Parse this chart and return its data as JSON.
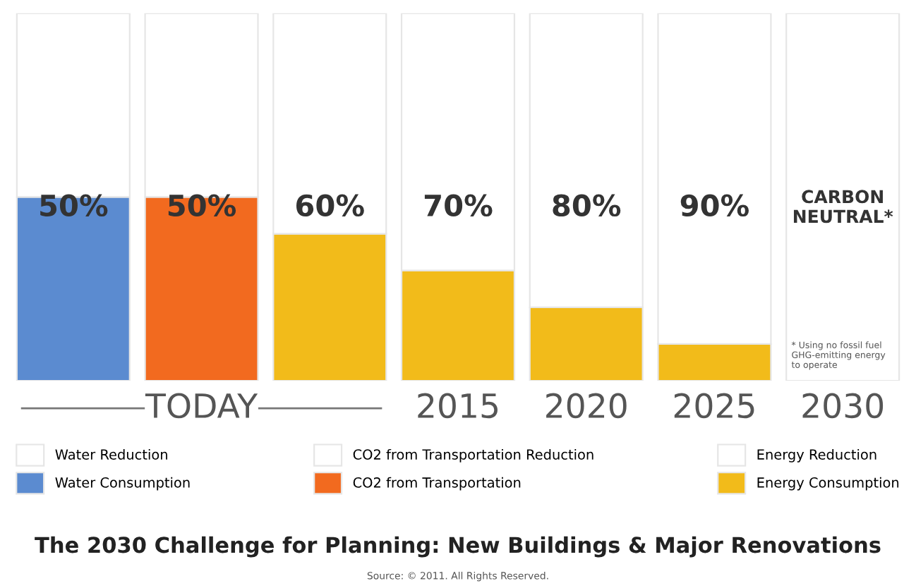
{
  "chart_data": {
    "type": "bar",
    "stacked": true,
    "title": "The 2030 Challenge for Planning: New Buildings & Major Renovations",
    "categories": [
      null,
      "TODAY",
      null,
      "2015",
      "2020",
      "2025",
      "2030"
    ],
    "series": [
      {
        "name": "Water Consumption",
        "color": "#5b8bd0",
        "values": [
          50,
          null,
          null,
          null,
          null,
          null,
          null
        ]
      },
      {
        "name": "CO2 from Transportation",
        "color": "#f26a1f",
        "values": [
          null,
          50,
          null,
          null,
          null,
          null,
          null
        ]
      },
      {
        "name": "Energy Consumption",
        "color": "#f2bb1a",
        "values": [
          null,
          null,
          40,
          30,
          20,
          10,
          0
        ]
      },
      {
        "name": "Water Reduction",
        "color": "#ffffff",
        "values": [
          50,
          null,
          null,
          null,
          null,
          null,
          null
        ],
        "value_labels": [
          "50%",
          null,
          null,
          null,
          null,
          null,
          null
        ]
      },
      {
        "name": "CO2 from Transportation Reduction",
        "color": "#ffffff",
        "values": [
          null,
          50,
          null,
          null,
          null,
          null,
          null
        ],
        "value_labels": [
          null,
          "50%",
          null,
          null,
          null,
          null,
          null
        ]
      },
      {
        "name": "Energy Reduction",
        "color": "#ffffff",
        "values": [
          null,
          null,
          60,
          70,
          80,
          90,
          100
        ],
        "value_labels": [
          null,
          null,
          "60%",
          "70%",
          "80%",
          "90%",
          "CARBON NEUTRAL*"
        ]
      }
    ],
    "annotations": [
      "* Using no fossil fuel GHG-emitting energy to operate",
      "Source: © 2011. All Rights Reserved."
    ],
    "legend": "bottom",
    "grid": false
  }
}
